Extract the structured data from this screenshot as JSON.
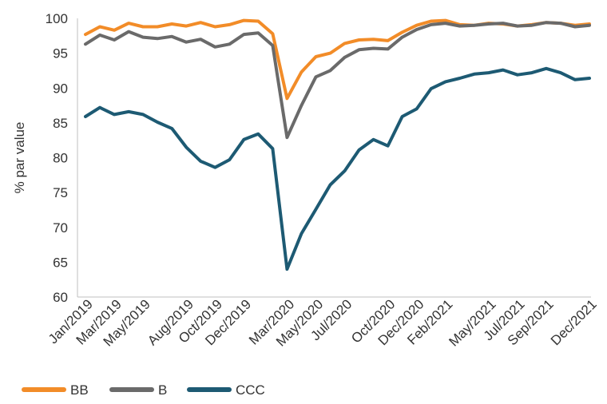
{
  "chart_data": {
    "type": "line",
    "ylabel": "% par value",
    "xlabel": "",
    "ylim": [
      60,
      100
    ],
    "yticks": [
      60,
      65,
      70,
      75,
      80,
      85,
      90,
      95,
      100
    ],
    "x": [
      "Jan/2019",
      "Feb/2019",
      "Mar/2019",
      "Apr/2019",
      "May/2019",
      "Jun/2019",
      "Jul/2019",
      "Aug/2019",
      "Sep/2019",
      "Oct/2019",
      "Nov/2019",
      "Dec/2019",
      "Jan/2020",
      "Feb/2020",
      "Mar/2020",
      "Apr/2020",
      "May/2020",
      "Jun/2020",
      "Jul/2020",
      "Aug/2020",
      "Sep/2020",
      "Oct/2020",
      "Nov/2020",
      "Dec/2020",
      "Jan/2021",
      "Feb/2021",
      "Mar/2021",
      "Apr/2021",
      "May/2021",
      "Jun/2021",
      "Jul/2021",
      "Aug/2021",
      "Sep/2021",
      "Oct/2021",
      "Nov/2021",
      "Dec/2021"
    ],
    "xtick_labels": [
      {
        "index": 0,
        "label": "Jan/2019"
      },
      {
        "index": 2,
        "label": "Mar/2019"
      },
      {
        "index": 4,
        "label": "May/2019"
      },
      {
        "index": 7,
        "label": "Aug/2019"
      },
      {
        "index": 9,
        "label": "Oct/2019"
      },
      {
        "index": 11,
        "label": "Dec/2019"
      },
      {
        "index": 14,
        "label": "Mar/2020"
      },
      {
        "index": 16,
        "label": "May/2020"
      },
      {
        "index": 18,
        "label": "Jul/2020"
      },
      {
        "index": 21,
        "label": "Oct/2020"
      },
      {
        "index": 23,
        "label": "Dec/2020"
      },
      {
        "index": 25,
        "label": "Feb/2021"
      },
      {
        "index": 28,
        "label": "May/2021"
      },
      {
        "index": 30,
        "label": "Jul/2021"
      },
      {
        "index": 32,
        "label": "Sep/2021"
      },
      {
        "index": 35,
        "label": "Dec/2021"
      }
    ],
    "series": [
      {
        "name": "BB",
        "color": "#f28c28",
        "values": [
          97.7,
          98.8,
          98.3,
          99.3,
          98.8,
          98.8,
          99.2,
          98.9,
          99.4,
          98.8,
          99.1,
          99.7,
          99.6,
          97.8,
          88.5,
          92.3,
          94.5,
          95.0,
          96.4,
          96.9,
          97.0,
          96.8,
          98.0,
          99.0,
          99.6,
          99.7,
          99.1,
          99.0,
          99.3,
          99.2,
          98.9,
          99.1,
          99.4,
          99.3,
          99.0,
          99.2
        ]
      },
      {
        "name": "B",
        "color": "#6a6a6a",
        "values": [
          96.3,
          97.6,
          96.9,
          98.1,
          97.3,
          97.1,
          97.4,
          96.6,
          97.0,
          95.9,
          96.3,
          97.7,
          97.9,
          96.1,
          82.9,
          87.5,
          91.6,
          92.5,
          94.4,
          95.5,
          95.7,
          95.6,
          97.3,
          98.4,
          99.1,
          99.3,
          98.9,
          99.0,
          99.2,
          99.3,
          98.9,
          99.0,
          99.4,
          99.3,
          98.8,
          99.0
        ]
      },
      {
        "name": "CCC",
        "color": "#1d5a73",
        "values": [
          85.9,
          87.2,
          86.2,
          86.6,
          86.2,
          85.1,
          84.2,
          81.5,
          79.5,
          78.6,
          79.7,
          82.6,
          83.4,
          81.3,
          64.0,
          69.1,
          72.6,
          76.1,
          78.1,
          81.1,
          82.6,
          81.7,
          85.9,
          87.0,
          89.9,
          90.9,
          91.4,
          92.0,
          92.2,
          92.6,
          91.9,
          92.2,
          92.8,
          92.2,
          91.2,
          91.4
        ]
      }
    ],
    "legend": "bottom-left",
    "grid": false
  }
}
